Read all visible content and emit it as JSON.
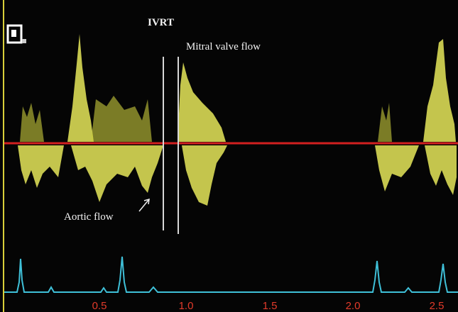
{
  "annotations": {
    "ivrt": "IVRT",
    "mitral": "Mitral valve flow",
    "aortic": "Aortic flow"
  },
  "time_axis": {
    "labels": [
      "0.5",
      "1.0",
      "1.5",
      "2.0",
      "2.5"
    ]
  }
}
